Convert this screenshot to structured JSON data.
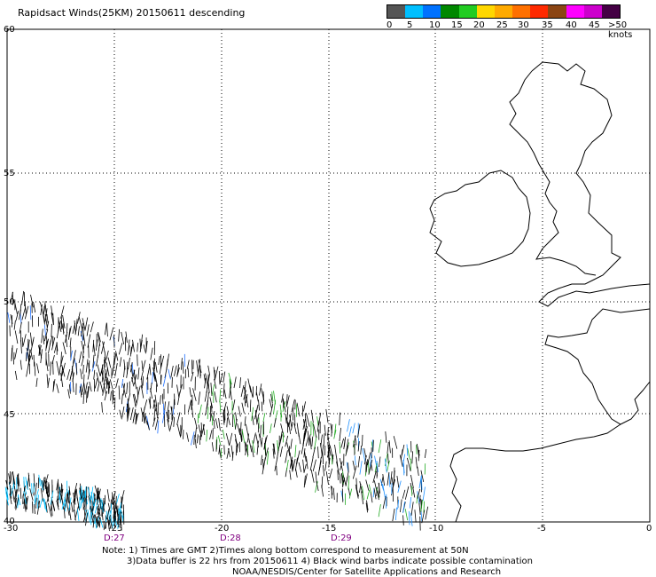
{
  "title": "Rapidsact Winds(25KM) 20150611 descending",
  "legend": {
    "colors": [
      "#555555",
      "#00bfff",
      "#0072ff",
      "#008800",
      "#22cc22",
      "#ffd700",
      "#ffaa00",
      "#ff7000",
      "#ff2a00",
      "#8b4513",
      "#ff00ff",
      "#cc00cc",
      "#440044"
    ],
    "labels": [
      "0",
      "5",
      "10",
      "15",
      "20",
      "25",
      "30",
      "35",
      "40",
      "45",
      ">50 knots"
    ]
  },
  "axes": {
    "lat_labels": [
      "60",
      "55",
      "50",
      "45",
      "40"
    ],
    "lon_labels": [
      "-30",
      "-25",
      "-20",
      "-15",
      "-10",
      "-5",
      "0"
    ]
  },
  "time_labels": [
    "D:27",
    "D:28",
    "D:29"
  ],
  "notes": {
    "line1": "Note: 1) Times are GMT 2)Times along bottom correspond to measurement at 50N",
    "line2": "3)Data buffer is 22 hrs from 20150611 4) Black wind barbs indicate possible contamination",
    "line3": "NOAA/NESDIS/Center for Satellite Applications and Research"
  }
}
